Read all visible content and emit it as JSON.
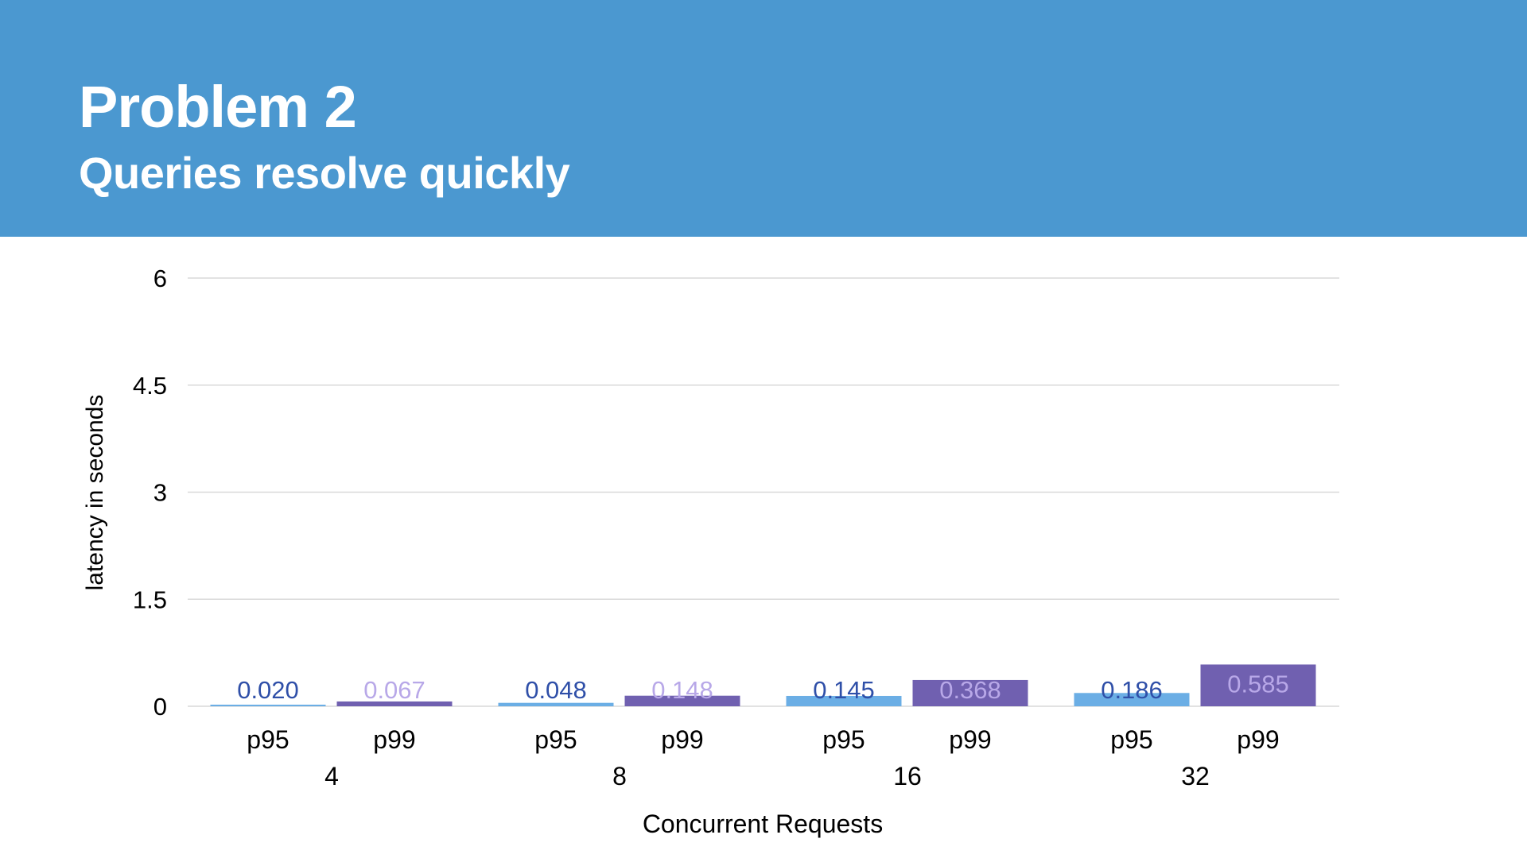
{
  "header": {
    "title": "Problem 2",
    "subtitle": "Queries resolve quickly"
  },
  "colors": {
    "header_bg": "#4B98D0",
    "p95_bar": "#6BAEE5",
    "p99_bar": "#7060B0",
    "p95_label": "#2F4FA8",
    "p99_label": "#B8A8E8",
    "gridline": "#D9D9D9"
  },
  "chart_data": {
    "type": "bar",
    "ylabel": "latency in seconds",
    "xlabel": "Concurrent Requests",
    "ylim": [
      0,
      6
    ],
    "yticks": [
      "0",
      "1.5",
      "3",
      "4.5",
      "6"
    ],
    "grid": true,
    "groups": [
      {
        "label": "4",
        "bars": [
          {
            "label": "p95",
            "value": 0.02,
            "text": "0.020"
          },
          {
            "label": "p99",
            "value": 0.067,
            "text": "0.067"
          }
        ]
      },
      {
        "label": "8",
        "bars": [
          {
            "label": "p95",
            "value": 0.048,
            "text": "0.048"
          },
          {
            "label": "p99",
            "value": 0.148,
            "text": "0.148"
          }
        ]
      },
      {
        "label": "16",
        "bars": [
          {
            "label": "p95",
            "value": 0.145,
            "text": "0.145"
          },
          {
            "label": "p99",
            "value": 0.368,
            "text": "0.368"
          }
        ]
      },
      {
        "label": "32",
        "bars": [
          {
            "label": "p95",
            "value": 0.186,
            "text": "0.186"
          },
          {
            "label": "p99",
            "value": 0.585,
            "text": "0.585"
          }
        ]
      }
    ]
  }
}
